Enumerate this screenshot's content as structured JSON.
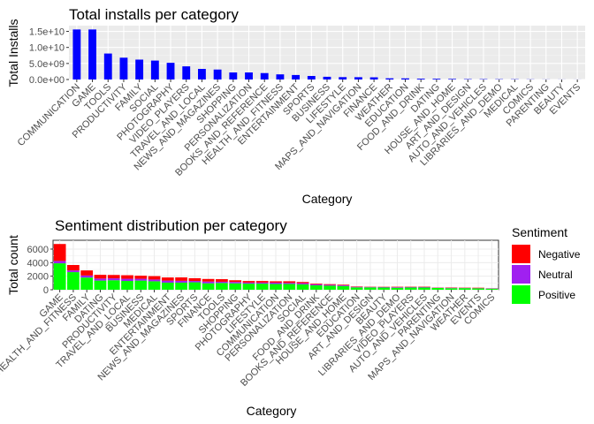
{
  "chart_data": [
    {
      "type": "bar",
      "title": "Total installs per category",
      "xlabel": "Category",
      "ylabel": "Total Installs",
      "ylim": [
        0,
        16800000000
      ],
      "yticks": [
        0,
        5000000000,
        10000000000,
        15000000000
      ],
      "ytick_labels": [
        "0.0e+00",
        "5.0e+09",
        "1.0e+10",
        "1.5e+10"
      ],
      "bar_color": "#0000ff",
      "grid": true,
      "categories": [
        "COMMUNICATION",
        "GAME",
        "TOOLS",
        "PRODUCTIVITY",
        "FAMILY",
        "SOCIAL",
        "PHOTOGRAPHY",
        "VIDEO_PLAYERS",
        "TRAVEL_AND_LOCAL",
        "NEWS_AND_MAGAZINES",
        "SHOPPING",
        "PERSONALIZATION",
        "BOOKS_AND_REFERENCE",
        "HEALTH_AND_FITNESS",
        "ENTERTAINMENT",
        "SPORTS",
        "BUSINESS",
        "LIFESTYLE",
        "MAPS_AND_NAVIGATION",
        "FINANCE",
        "WEATHER",
        "EDUCATION",
        "FOOD_AND_DRINK",
        "DATING",
        "HOUSE_AND_HOME",
        "ART_AND_DESIGN",
        "AUTO_AND_VEHICLES",
        "LIBRARIES_AND_DEMO",
        "MEDICAL",
        "COMICS",
        "PARENTING",
        "BEAUTY",
        "EVENTS"
      ],
      "values": [
        15600000000,
        15600000000,
        8100000000,
        6800000000,
        6200000000,
        5900000000,
        5200000000,
        4100000000,
        3300000000,
        3100000000,
        2200000000,
        2200000000,
        2000000000,
        1600000000,
        1400000000,
        1100000000,
        850000000,
        740000000,
        720000000,
        680000000,
        370000000,
        350000000,
        250000000,
        230000000,
        180000000,
        120000000,
        110000000,
        90000000,
        80000000,
        50000000,
        30000000,
        20000000,
        15000000
      ]
    },
    {
      "type": "bar",
      "stacked": true,
      "title": "Sentiment distribution per category",
      "xlabel": "Category",
      "ylabel": "Total count",
      "ylim": [
        0,
        7300
      ],
      "yticks": [
        0,
        2000,
        4000,
        6000
      ],
      "ytick_labels": [
        "0",
        "2000",
        "4000",
        "6000"
      ],
      "grid": true,
      "legend": {
        "title": "Sentiment",
        "placement": "right"
      },
      "categories": [
        "GAME",
        "HEALTH_AND_FITNESS",
        "FAMILY",
        "DATING",
        "PRODUCTIVITY",
        "TRAVEL_AND_LOCAL",
        "BUSINESS",
        "MEDICAL",
        "ENTERTAINMENT",
        "NEWS_AND_MAGAZINES",
        "SPORTS",
        "FINANCE",
        "TOOLS",
        "SHOPPING",
        "PHOTOGRAPHY",
        "LIFESTYLE",
        "COMMUNICATION",
        "PERSONALIZATION",
        "SOCIAL",
        "FOOD_AND_DRINK",
        "BOOKS_AND_REFERENCE",
        "HOUSE_AND_HOME",
        "EDUCATION",
        "ART_AND_DESIGN",
        "BEAUTY",
        "LIBRARIES_AND_DEMO",
        "VIDEO_PLAYERS",
        "AUTO_AND_VEHICLES",
        "PARENTING",
        "MAPS_AND_NAVIGATION",
        "WEATHER",
        "EVENTS",
        "COMICS"
      ],
      "series": [
        {
          "name": "Positive",
          "color": "#00ff00",
          "values": [
            3900,
            2600,
            1800,
            1350,
            1400,
            1300,
            1350,
            1250,
            1050,
            1050,
            1100,
            950,
            1000,
            950,
            900,
            900,
            850,
            850,
            800,
            650,
            600,
            550,
            350,
            350,
            330,
            300,
            330,
            330,
            260,
            230,
            240,
            200,
            160
          ]
        },
        {
          "name": "Neutral",
          "color": "#a020f0",
          "values": [
            350,
            250,
            300,
            300,
            280,
            320,
            270,
            260,
            300,
            270,
            200,
            260,
            180,
            200,
            160,
            160,
            200,
            170,
            170,
            150,
            120,
            120,
            80,
            60,
            60,
            80,
            60,
            80,
            40,
            60,
            40,
            40,
            40
          ]
        },
        {
          "name": "Negative",
          "color": "#ff0000",
          "values": [
            2500,
            800,
            750,
            550,
            500,
            520,
            450,
            500,
            460,
            500,
            400,
            380,
            380,
            250,
            230,
            230,
            200,
            230,
            170,
            100,
            100,
            90,
            60,
            40,
            40,
            60,
            50,
            50,
            30,
            50,
            40,
            60,
            20
          ]
        }
      ]
    }
  ]
}
